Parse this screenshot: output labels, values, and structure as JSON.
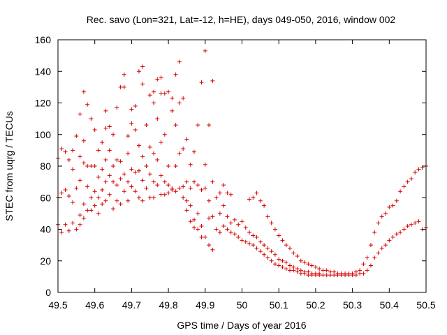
{
  "chart_data": {
    "type": "scatter",
    "title": "Rec. savo (Lon=321, Lat=-12, h=HE), days 049-050, 2016, window 002",
    "xlabel": "GPS time / Days of year 2016",
    "ylabel": "STEC from uqrg / TECUs",
    "xlim": [
      49.5,
      50.5
    ],
    "ylim": [
      0,
      160
    ],
    "xticks": [
      "49.5",
      "49.6",
      "49.7",
      "49.8",
      "49.9",
      "50",
      "50.1",
      "50.2",
      "50.3",
      "50.4",
      "50.5"
    ],
    "xtick_values": [
      49.5,
      49.6,
      49.7,
      49.8,
      49.9,
      50.0,
      50.1,
      50.2,
      50.3,
      50.4,
      50.5
    ],
    "yticks": [
      "0",
      "20",
      "40",
      "60",
      "80",
      "100",
      "120",
      "140",
      "160"
    ],
    "ytick_values": [
      0,
      20,
      40,
      60,
      80,
      100,
      120,
      140,
      160
    ],
    "marker": "+",
    "color": "#d40000",
    "series": [
      {
        "name": "STEC",
        "points": [
          [
            49.5,
            85
          ],
          [
            49.5,
            60
          ],
          [
            49.5,
            43
          ],
          [
            49.51,
            91
          ],
          [
            49.51,
            63
          ],
          [
            49.51,
            38
          ],
          [
            49.52,
            89
          ],
          [
            49.52,
            65
          ],
          [
            49.52,
            43
          ],
          [
            49.53,
            84
          ],
          [
            49.53,
            61
          ],
          [
            49.53,
            39
          ],
          [
            49.54,
            90
          ],
          [
            49.54,
            78
          ],
          [
            49.54,
            57
          ],
          [
            49.54,
            44
          ],
          [
            49.55,
            99
          ],
          [
            49.55,
            66
          ],
          [
            49.55,
            40
          ],
          [
            49.56,
            113
          ],
          [
            49.56,
            86
          ],
          [
            49.56,
            71
          ],
          [
            49.56,
            49
          ],
          [
            49.56,
            43
          ],
          [
            49.57,
            127
          ],
          [
            49.57,
            96
          ],
          [
            49.57,
            82
          ],
          [
            49.57,
            56
          ],
          [
            49.57,
            47
          ],
          [
            49.58,
            119
          ],
          [
            49.58,
            80
          ],
          [
            49.58,
            67
          ],
          [
            49.58,
            52
          ],
          [
            49.59,
            110
          ],
          [
            49.59,
            80
          ],
          [
            49.59,
            60
          ],
          [
            49.59,
            52
          ],
          [
            49.6,
            103
          ],
          [
            49.6,
            80
          ],
          [
            49.6,
            64
          ],
          [
            49.6,
            55
          ],
          [
            49.61,
            90
          ],
          [
            49.61,
            73
          ],
          [
            49.61,
            60
          ],
          [
            49.61,
            50
          ],
          [
            49.62,
            95
          ],
          [
            49.62,
            78
          ],
          [
            49.62,
            65
          ],
          [
            49.62,
            56
          ],
          [
            49.63,
            115
          ],
          [
            49.63,
            104
          ],
          [
            49.63,
            84
          ],
          [
            49.63,
            70
          ],
          [
            49.63,
            58
          ],
          [
            49.64,
            105
          ],
          [
            49.64,
            90
          ],
          [
            49.64,
            74
          ],
          [
            49.64,
            62
          ],
          [
            49.65,
            100
          ],
          [
            49.65,
            80
          ],
          [
            49.65,
            70
          ],
          [
            49.65,
            53
          ],
          [
            49.66,
            117
          ],
          [
            49.66,
            84
          ],
          [
            49.66,
            68
          ],
          [
            49.66,
            58
          ],
          [
            49.67,
            130
          ],
          [
            49.67,
            83
          ],
          [
            49.67,
            72
          ],
          [
            49.67,
            56
          ],
          [
            49.68,
            138
          ],
          [
            49.68,
            130
          ],
          [
            49.68,
            75
          ],
          [
            49.68,
            64
          ],
          [
            49.69,
            99
          ],
          [
            49.69,
            88
          ],
          [
            49.69,
            70
          ],
          [
            49.69,
            58
          ],
          [
            49.7,
            116
          ],
          [
            49.7,
            107
          ],
          [
            49.7,
            78
          ],
          [
            49.7,
            67
          ],
          [
            49.71,
            118
          ],
          [
            49.71,
            103
          ],
          [
            49.71,
            76
          ],
          [
            49.71,
            64
          ],
          [
            49.72,
            140
          ],
          [
            49.72,
            93
          ],
          [
            49.72,
            77
          ],
          [
            49.72,
            60
          ],
          [
            49.73,
            143
          ],
          [
            49.73,
            132
          ],
          [
            49.73,
            86
          ],
          [
            49.73,
            71
          ],
          [
            49.73,
            58
          ],
          [
            49.74,
            106
          ],
          [
            49.74,
            80
          ],
          [
            49.74,
            66
          ],
          [
            49.75,
            125
          ],
          [
            49.75,
            92
          ],
          [
            49.75,
            75
          ],
          [
            49.75,
            60
          ],
          [
            49.76,
            127
          ],
          [
            49.76,
            120
          ],
          [
            49.76,
            88
          ],
          [
            49.76,
            70
          ],
          [
            49.76,
            60
          ],
          [
            49.77,
            135
          ],
          [
            49.77,
            110
          ],
          [
            49.77,
            84
          ],
          [
            49.77,
            68
          ],
          [
            49.78,
            136
          ],
          [
            49.78,
            126
          ],
          [
            49.78,
            95
          ],
          [
            49.78,
            74
          ],
          [
            49.78,
            62
          ],
          [
            49.79,
            126
          ],
          [
            49.79,
            100
          ],
          [
            49.79,
            70
          ],
          [
            49.79,
            62
          ],
          [
            49.8,
            127
          ],
          [
            49.8,
            80
          ],
          [
            49.8,
            68
          ],
          [
            49.8,
            63
          ],
          [
            49.81,
            123
          ],
          [
            49.81,
            115
          ],
          [
            49.81,
            66
          ],
          [
            49.81,
            65
          ],
          [
            49.82,
            138
          ],
          [
            49.82,
            106
          ],
          [
            49.82,
            80
          ],
          [
            49.82,
            64
          ],
          [
            49.83,
            146
          ],
          [
            49.83,
            120
          ],
          [
            49.83,
            88
          ],
          [
            49.83,
            66
          ],
          [
            49.84,
            123
          ],
          [
            49.84,
            91
          ],
          [
            49.84,
            67
          ],
          [
            49.84,
            60
          ],
          [
            49.85,
            97
          ],
          [
            49.85,
            70
          ],
          [
            49.85,
            58
          ],
          [
            49.85,
            52
          ],
          [
            49.86,
            81
          ],
          [
            49.86,
            66
          ],
          [
            49.86,
            55
          ],
          [
            49.86,
            45
          ],
          [
            49.87,
            89
          ],
          [
            49.87,
            70
          ],
          [
            49.87,
            46
          ],
          [
            49.87,
            41
          ],
          [
            49.88,
            106
          ],
          [
            49.88,
            68
          ],
          [
            49.88,
            50
          ],
          [
            49.88,
            40
          ],
          [
            49.89,
            133
          ],
          [
            49.89,
            65
          ],
          [
            49.89,
            42
          ],
          [
            49.89,
            35
          ],
          [
            49.9,
            153
          ],
          [
            49.9,
            81
          ],
          [
            49.9,
            66
          ],
          [
            49.9,
            35
          ],
          [
            49.91,
            106
          ],
          [
            49.91,
            58
          ],
          [
            49.91,
            47
          ],
          [
            49.91,
            30
          ],
          [
            49.92,
            134
          ],
          [
            49.92,
            70
          ],
          [
            49.92,
            48
          ],
          [
            49.92,
            27
          ],
          [
            49.93,
            60
          ],
          [
            49.93,
            40
          ],
          [
            49.94,
            63
          ],
          [
            49.94,
            50
          ],
          [
            49.94,
            38
          ],
          [
            49.95,
            68
          ],
          [
            49.95,
            55
          ],
          [
            49.95,
            42
          ],
          [
            49.96,
            63
          ],
          [
            49.96,
            48
          ],
          [
            49.96,
            40
          ],
          [
            49.97,
            62
          ],
          [
            49.97,
            44
          ],
          [
            49.97,
            38
          ],
          [
            49.98,
            46
          ],
          [
            49.98,
            37
          ],
          [
            49.99,
            43
          ],
          [
            49.99,
            35
          ],
          [
            50.0,
            45
          ],
          [
            50.0,
            33
          ],
          [
            50.01,
            41
          ],
          [
            50.01,
            32
          ],
          [
            50.02,
            59
          ],
          [
            50.02,
            38
          ],
          [
            50.02,
            31
          ],
          [
            50.03,
            60
          ],
          [
            50.03,
            36
          ],
          [
            50.03,
            30
          ],
          [
            50.04,
            63
          ],
          [
            50.04,
            35
          ],
          [
            50.04,
            28
          ],
          [
            50.05,
            58
          ],
          [
            50.05,
            32
          ],
          [
            50.05,
            26
          ],
          [
            50.06,
            55
          ],
          [
            50.06,
            30
          ],
          [
            50.06,
            24
          ],
          [
            50.07,
            48
          ],
          [
            50.07,
            28
          ],
          [
            50.07,
            22
          ],
          [
            50.08,
            44
          ],
          [
            50.08,
            26
          ],
          [
            50.08,
            20
          ],
          [
            50.09,
            40
          ],
          [
            50.09,
            24
          ],
          [
            50.09,
            18
          ],
          [
            50.1,
            36
          ],
          [
            50.1,
            21
          ],
          [
            50.1,
            17
          ],
          [
            50.11,
            33
          ],
          [
            50.11,
            20
          ],
          [
            50.11,
            16
          ],
          [
            50.12,
            30
          ],
          [
            50.12,
            19
          ],
          [
            50.12,
            15
          ],
          [
            50.13,
            28
          ],
          [
            50.13,
            17
          ],
          [
            50.13,
            14
          ],
          [
            50.14,
            25
          ],
          [
            50.14,
            16
          ],
          [
            50.14,
            14
          ],
          [
            50.15,
            23
          ],
          [
            50.15,
            15
          ],
          [
            50.15,
            13
          ],
          [
            50.16,
            20
          ],
          [
            50.16,
            14
          ],
          [
            50.16,
            12
          ],
          [
            50.17,
            19
          ],
          [
            50.17,
            13
          ],
          [
            50.17,
            12
          ],
          [
            50.18,
            18
          ],
          [
            50.18,
            13
          ],
          [
            50.18,
            11
          ],
          [
            50.19,
            17
          ],
          [
            50.19,
            12
          ],
          [
            50.19,
            11
          ],
          [
            50.2,
            16
          ],
          [
            50.2,
            12
          ],
          [
            50.2,
            11
          ],
          [
            50.21,
            15
          ],
          [
            50.21,
            12
          ],
          [
            50.21,
            11
          ],
          [
            50.22,
            14
          ],
          [
            50.22,
            11
          ],
          [
            50.23,
            14
          ],
          [
            50.23,
            11
          ],
          [
            50.24,
            13
          ],
          [
            50.24,
            11
          ],
          [
            50.25,
            13
          ],
          [
            50.25,
            11
          ],
          [
            50.26,
            12
          ],
          [
            50.26,
            11
          ],
          [
            50.27,
            12
          ],
          [
            50.27,
            11
          ],
          [
            50.28,
            12
          ],
          [
            50.28,
            11
          ],
          [
            50.29,
            12
          ],
          [
            50.29,
            11
          ],
          [
            50.3,
            12
          ],
          [
            50.3,
            11
          ],
          [
            50.31,
            13
          ],
          [
            50.31,
            11
          ],
          [
            50.32,
            14
          ],
          [
            50.32,
            12
          ],
          [
            50.33,
            18
          ],
          [
            50.33,
            12
          ],
          [
            50.34,
            22
          ],
          [
            50.34,
            14
          ],
          [
            50.35,
            30
          ],
          [
            50.35,
            17
          ],
          [
            50.36,
            38
          ],
          [
            50.36,
            22
          ],
          [
            50.37,
            44
          ],
          [
            50.37,
            25
          ],
          [
            50.38,
            48
          ],
          [
            50.38,
            28
          ],
          [
            50.39,
            50
          ],
          [
            50.39,
            30
          ],
          [
            50.4,
            54
          ],
          [
            50.4,
            33
          ],
          [
            50.41,
            55
          ],
          [
            50.41,
            35
          ],
          [
            50.42,
            58
          ],
          [
            50.42,
            37
          ],
          [
            50.43,
            64
          ],
          [
            50.43,
            38
          ],
          [
            50.44,
            67
          ],
          [
            50.44,
            40
          ],
          [
            50.45,
            70
          ],
          [
            50.45,
            42
          ],
          [
            50.46,
            72
          ],
          [
            50.46,
            43
          ],
          [
            50.47,
            76
          ],
          [
            50.47,
            44
          ],
          [
            50.48,
            78
          ],
          [
            50.48,
            45
          ],
          [
            50.49,
            79
          ],
          [
            50.49,
            40
          ],
          [
            50.5,
            80
          ],
          [
            50.5,
            41
          ]
        ]
      }
    ]
  }
}
